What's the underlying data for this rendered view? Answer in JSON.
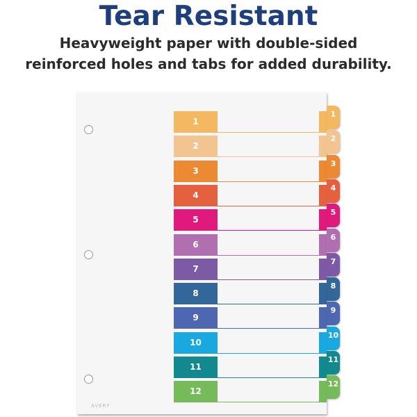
{
  "headline": "Tear Resistant",
  "subtitle_lines": [
    "Heavyweight paper with double-sided",
    "reinforced holes and tabs for added durability."
  ],
  "brand_logo": "AVERY",
  "dividers": [
    {
      "label": "1",
      "color": "#f4b860"
    },
    {
      "label": "2",
      "color": "#f2c48f"
    },
    {
      "label": "3",
      "color": "#ec8a33"
    },
    {
      "label": "4",
      "color": "#e4603f"
    },
    {
      "label": "5",
      "color": "#e0197d"
    },
    {
      "label": "6",
      "color": "#b06fb0"
    },
    {
      "label": "7",
      "color": "#7d5aa6"
    },
    {
      "label": "8",
      "color": "#336799"
    },
    {
      "label": "9",
      "color": "#4d68b0"
    },
    {
      "label": "10",
      "color": "#1aa8e0"
    },
    {
      "label": "11",
      "color": "#11898f"
    },
    {
      "label": "12",
      "color": "#76bb5a"
    }
  ]
}
